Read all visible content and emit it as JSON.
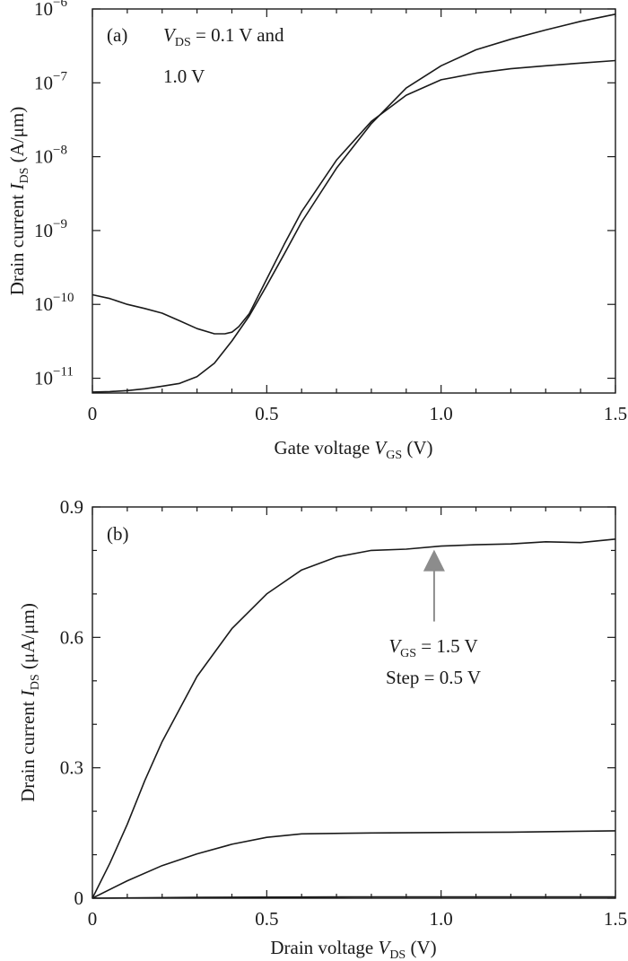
{
  "colors": {
    "ink": "#1a1a1a",
    "arrow": "#8c8c8c",
    "background": "#ffffff"
  },
  "chart_data": [
    {
      "type": "line",
      "panel_label": "(a)",
      "annotation": {
        "line1_var": "V",
        "line1_sub": "DS",
        "line1_rest": " = 0.1 V and",
        "line2": "1.0 V"
      },
      "xlabel": {
        "pre": "Gate voltage ",
        "var": "V",
        "sub": "GS",
        "post": " (V)"
      },
      "ylabel": {
        "pre": "Drain current ",
        "var": "I",
        "sub": "DS",
        "post": " (A/μm)"
      },
      "xlim": [
        0,
        1.5
      ],
      "ylim_log10": [
        -11.2,
        -6
      ],
      "yscale": "log",
      "xticks": [
        0,
        0.5,
        1.0,
        1.5
      ],
      "xtick_labels": [
        "0",
        "0.5",
        "1.0",
        "1.5"
      ],
      "yticks": [
        {
          "base": "10",
          "exp": "−6",
          "value": -6
        },
        {
          "base": "10",
          "exp": "−7",
          "value": -7
        },
        {
          "base": "10",
          "exp": "−8",
          "value": -8
        },
        {
          "base": "10",
          "exp": "−9",
          "value": -9
        },
        {
          "base": "10",
          "exp": "−10",
          "value": -10
        },
        {
          "base": "10",
          "exp": "−11",
          "value": -11
        }
      ],
      "series": [
        {
          "x": [
            0,
            0.05,
            0.1,
            0.15,
            0.2,
            0.25,
            0.3,
            0.35,
            0.4,
            0.45,
            0.5,
            0.55,
            0.6,
            0.7,
            0.8,
            0.9,
            1.0,
            1.1,
            1.2,
            1.3,
            1.4,
            1.5
          ],
          "y": [
            6.5e-12,
            6.6e-12,
            6.8e-12,
            7.2e-12,
            7.8e-12,
            8.5e-12,
            1.05e-11,
            1.6e-11,
            3.2e-11,
            7e-11,
            1.8e-10,
            4.8e-10,
            1.3e-09,
            7e-09,
            2.8e-08,
            8.5e-08,
            1.7e-07,
            2.8e-07,
            3.9e-07,
            5.2e-07,
            6.8e-07,
            8.5e-07
          ]
        },
        {
          "x": [
            0,
            0.05,
            0.1,
            0.15,
            0.2,
            0.25,
            0.3,
            0.35,
            0.38,
            0.4,
            0.42,
            0.45,
            0.5,
            0.55,
            0.6,
            0.7,
            0.8,
            0.9,
            1.0,
            1.1,
            1.2,
            1.3,
            1.4,
            1.5
          ],
          "y": [
            1.35e-10,
            1.2e-10,
            1e-10,
            8.8e-11,
            7.6e-11,
            6e-11,
            4.7e-11,
            4e-11,
            4e-11,
            4.2e-11,
            5e-11,
            7.5e-11,
            2.2e-10,
            6.5e-10,
            1.8e-09,
            9e-09,
            3e-08,
            6.8e-08,
            1.1e-07,
            1.35e-07,
            1.55e-07,
            1.7e-07,
            1.85e-07,
            2e-07
          ]
        }
      ]
    },
    {
      "type": "line",
      "panel_label": "(b)",
      "annotation": {
        "line1_var": "V",
        "line1_sub": "GS",
        "line1_rest": " = 1.5 V",
        "line2": "Step = 0.5 V"
      },
      "xlabel": {
        "pre": "Drain voltage ",
        "var": "V",
        "sub": "DS",
        "post": " (V)"
      },
      "ylabel": {
        "pre": "Drain current ",
        "var": "I",
        "sub": "DS",
        "post": " (μA/μm)"
      },
      "xlim": [
        0,
        1.5
      ],
      "ylim": [
        0,
        0.9
      ],
      "xticks": [
        0,
        0.5,
        1.0,
        1.5
      ],
      "xtick_labels": [
        "0",
        "0.5",
        "1.0",
        "1.5"
      ],
      "yticks": [
        0,
        0.3,
        0.6,
        0.9
      ],
      "ytick_labels": [
        "0",
        "0.3",
        "0.6",
        "0.9"
      ],
      "arrow_target": {
        "x": 0.98,
        "y": 0.81
      },
      "series": [
        {
          "x": [
            0,
            0.05,
            0.1,
            0.15,
            0.2,
            0.3,
            0.4,
            0.5,
            0.6,
            0.7,
            0.8,
            0.9,
            1.0,
            1.1,
            1.2,
            1.3,
            1.4,
            1.5
          ],
          "y": [
            0,
            0.08,
            0.17,
            0.27,
            0.36,
            0.51,
            0.62,
            0.7,
            0.755,
            0.785,
            0.8,
            0.803,
            0.81,
            0.813,
            0.815,
            0.82,
            0.818,
            0.826
          ]
        },
        {
          "x": [
            0,
            0.1,
            0.2,
            0.3,
            0.4,
            0.5,
            0.6,
            0.8,
            1.0,
            1.2,
            1.5
          ],
          "y": [
            0,
            0.04,
            0.075,
            0.102,
            0.124,
            0.14,
            0.148,
            0.15,
            0.151,
            0.152,
            0.155
          ]
        },
        {
          "x": [
            0,
            0.3,
            0.75,
            1.5
          ],
          "y": [
            0,
            0.002,
            0.003,
            0.003
          ]
        }
      ]
    }
  ]
}
